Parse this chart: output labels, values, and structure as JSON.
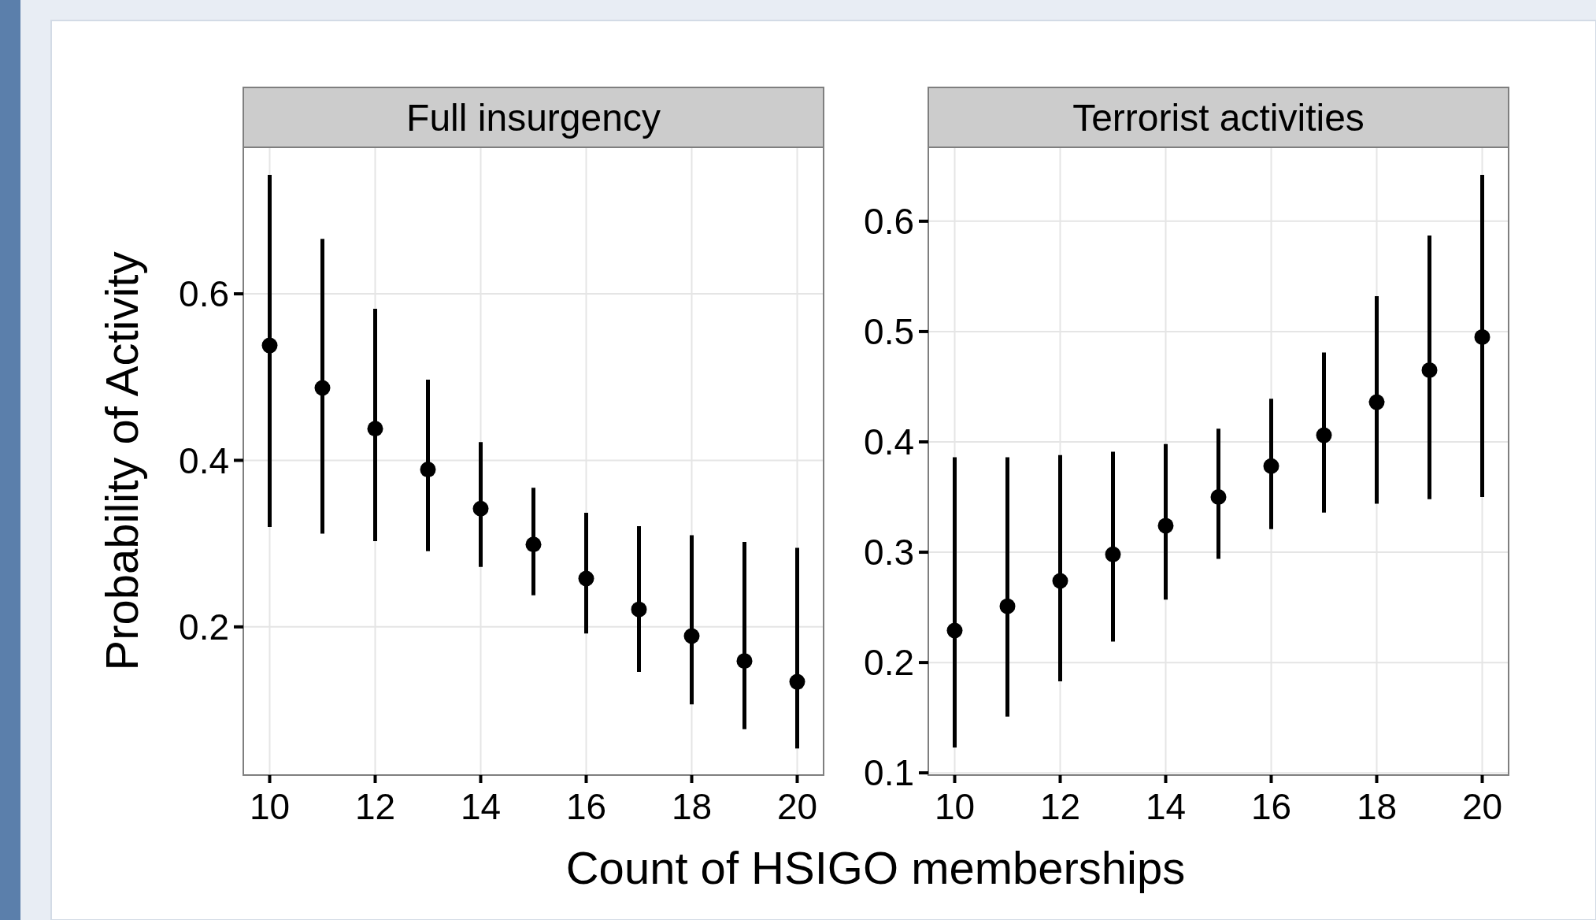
{
  "chart_data": [
    {
      "type": "scatter",
      "title": "Full insurgency",
      "xlabel": "Count of HSIGO memberships",
      "ylabel": "Probability of Activity",
      "x": [
        10,
        11,
        12,
        13,
        14,
        15,
        16,
        17,
        18,
        19,
        20
      ],
      "values": [
        0.538,
        0.487,
        0.438,
        0.389,
        0.342,
        0.299,
        0.258,
        0.221,
        0.189,
        0.159,
        0.134
      ],
      "errors": [
        [
          0.32,
          0.743
        ],
        [
          0.312,
          0.666
        ],
        [
          0.303,
          0.582
        ],
        [
          0.291,
          0.497
        ],
        [
          0.272,
          0.422
        ],
        [
          0.238,
          0.367
        ],
        [
          0.192,
          0.337
        ],
        [
          0.146,
          0.321
        ],
        [
          0.107,
          0.31
        ],
        [
          0.077,
          0.302
        ],
        [
          0.054,
          0.295
        ]
      ],
      "color": "#000000",
      "marker": "circle",
      "grid": true,
      "xlim": [
        9.5,
        20.5
      ],
      "ylim": [
        0.022,
        0.776
      ],
      "xticks": [
        10,
        12,
        14,
        16,
        18,
        20
      ],
      "yticks": [
        0.2,
        0.4,
        0.6
      ]
    },
    {
      "type": "scatter",
      "title": "Terrorist activities",
      "x": [
        10,
        11,
        12,
        13,
        14,
        15,
        16,
        17,
        18,
        19,
        20
      ],
      "values": [
        0.229,
        0.251,
        0.274,
        0.298,
        0.324,
        0.35,
        0.378,
        0.406,
        0.436,
        0.465,
        0.495
      ],
      "errors": [
        [
          0.123,
          0.386
        ],
        [
          0.151,
          0.386
        ],
        [
          0.183,
          0.388
        ],
        [
          0.219,
          0.391
        ],
        [
          0.257,
          0.398
        ],
        [
          0.294,
          0.412
        ],
        [
          0.321,
          0.439
        ],
        [
          0.336,
          0.481
        ],
        [
          0.344,
          0.532
        ],
        [
          0.348,
          0.587
        ],
        [
          0.35,
          0.642
        ]
      ],
      "color": "#000000",
      "marker": "circle",
      "grid": true,
      "xlim": [
        9.5,
        20.5
      ],
      "ylim": [
        0.098,
        0.667
      ],
      "xticks": [
        10,
        12,
        14,
        16,
        18,
        20
      ],
      "yticks": [
        0.1,
        0.2,
        0.3,
        0.4,
        0.5,
        0.6
      ]
    }
  ]
}
